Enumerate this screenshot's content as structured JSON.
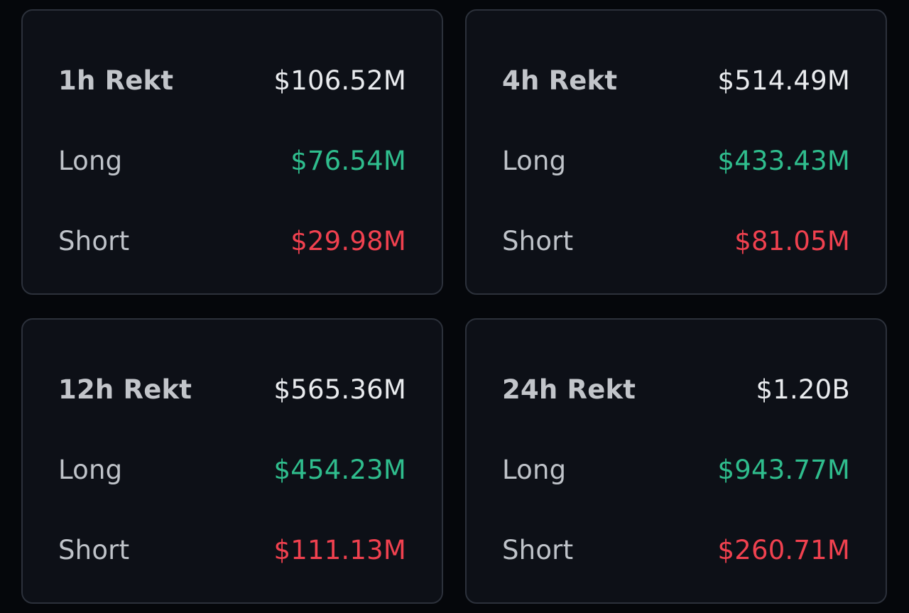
{
  "colors": {
    "background": "#05070b",
    "card": "#0d1017",
    "border": "#2c313b",
    "total": "#e9ebee",
    "long": "#2fbd8d",
    "short": "#f0414f"
  },
  "cards": [
    {
      "title": "1h Rekt",
      "total": "$106.52M",
      "long_label": "Long",
      "long_value": "$76.54M",
      "short_label": "Short",
      "short_value": "$29.98M"
    },
    {
      "title": "4h Rekt",
      "total": "$514.49M",
      "long_label": "Long",
      "long_value": "$433.43M",
      "short_label": "Short",
      "short_value": "$81.05M"
    },
    {
      "title": "12h Rekt",
      "total": "$565.36M",
      "long_label": "Long",
      "long_value": "$454.23M",
      "short_label": "Short",
      "short_value": "$111.13M"
    },
    {
      "title": "24h Rekt",
      "total": "$1.20B",
      "long_label": "Long",
      "long_value": "$943.77M",
      "short_label": "Short",
      "short_value": "$260.71M"
    }
  ]
}
